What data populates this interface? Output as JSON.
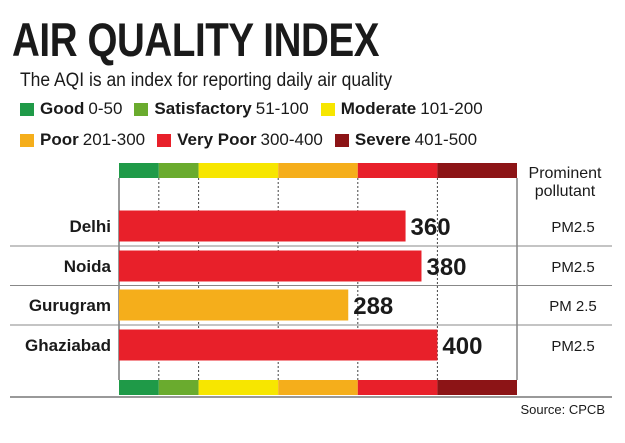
{
  "chart_data": {
    "type": "bar",
    "title": "AIR QUALITY INDEX",
    "subtitle": "The AQI is an index for reporting daily air quality",
    "categories": [
      "Delhi",
      "Noida",
      "Gurugram",
      "Ghaziabad"
    ],
    "values": [
      360,
      380,
      288,
      400
    ],
    "pollutants": [
      "PM2.5",
      "PM2.5",
      "PM 2.5",
      "PM2.5"
    ],
    "pollutant_header": [
      "Prominent",
      "pollutant"
    ],
    "xlim": [
      0,
      500
    ],
    "legend": [
      {
        "name": "Good",
        "range": "0-50",
        "color": "#1f9a48"
      },
      {
        "name": "Satisfactory",
        "range": "51-100",
        "color": "#6aab2e"
      },
      {
        "name": "Moderate",
        "range": "101-200",
        "color": "#f7e600"
      },
      {
        "name": "Poor",
        "range": "201-300",
        "color": "#f5ae1b"
      },
      {
        "name": "Very Poor",
        "range": "300-400",
        "color": "#e8202a"
      },
      {
        "name": "Severe",
        "range": "401-500",
        "color": "#8c1416"
      }
    ],
    "scale_bands": [
      {
        "from": 0,
        "to": 50,
        "color": "#1f9a48"
      },
      {
        "from": 50,
        "to": 100,
        "color": "#6aab2e"
      },
      {
        "from": 100,
        "to": 200,
        "color": "#f7e600"
      },
      {
        "from": 200,
        "to": 300,
        "color": "#f5ae1b"
      },
      {
        "from": 300,
        "to": 400,
        "color": "#e8202a"
      },
      {
        "from": 400,
        "to": 500,
        "color": "#8c1416"
      }
    ],
    "bar_colors": [
      "#e8202a",
      "#e8202a",
      "#f5ae1b",
      "#e8202a"
    ],
    "grid": true,
    "legend_placement": "top"
  },
  "source": "Source: CPCB"
}
